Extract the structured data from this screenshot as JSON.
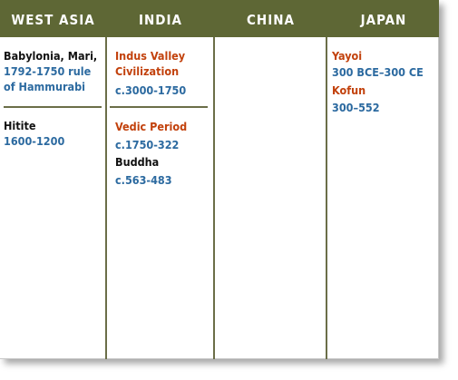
{
  "headers": {
    "west_asia": "WEST ASIA",
    "india": "INDIA",
    "china": "CHINA",
    "japan": "JAPAN"
  },
  "west_asia": {
    "babylonia_title": "Babylonia, Mari,",
    "babylonia_line1": "1792-1750 rule",
    "babylonia_line2": "of Hammurabi",
    "hitite_title": "Hitite",
    "hitite_dates": "1600-1200"
  },
  "india": {
    "indus_line1": "Indus Valley",
    "indus_line2": "Civilization",
    "indus_dates": "c.3000-1750",
    "vedic_title": "Vedic Period",
    "vedic_dates": "c.1750-322",
    "buddha_title": "Buddha",
    "buddha_dates": "c.563-483"
  },
  "japan": {
    "yayoi_title": "Yayoi",
    "yayoi_dates": "300 BCE–300 CE",
    "kofun_title": "Kofun",
    "kofun_dates": "300–552"
  },
  "colors": {
    "header_bg": "#5e6735",
    "rule": "#6b6e48",
    "dates": "#2c6aa0",
    "india_japan_titles": "#c2410c"
  }
}
